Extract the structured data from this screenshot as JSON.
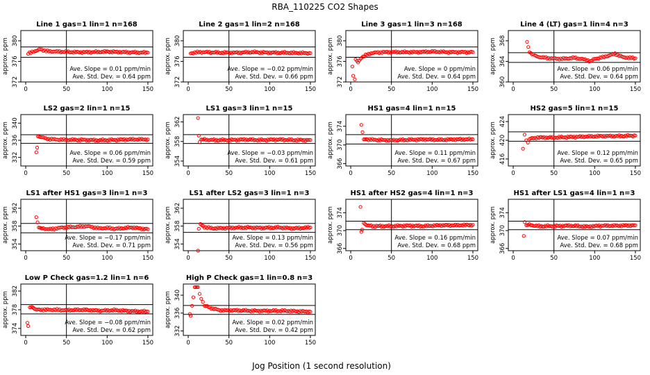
{
  "figure": {
    "title": "RBA_110225  CO2 Shapes",
    "xlabel": "Jog Position (1 second resolution)",
    "ylabel": "approx. ppm"
  },
  "chart_data": [
    {
      "type": "scatter",
      "title": "Line 1 gas=1 lin=1 n=168",
      "xlim": [
        0,
        150
      ],
      "xticks": [
        0,
        50,
        100,
        150
      ],
      "ylim": [
        372,
        382
      ],
      "yticks": [
        372,
        376,
        380
      ],
      "hlines": [
        376.8,
        378.8
      ],
      "vline": 50,
      "slope": "0.01",
      "sd": "0.64",
      "color": "#ff0000",
      "series": [
        {
          "name": "",
          "x": [
            3,
            8,
            13,
            18,
            25,
            40,
            60,
            80,
            100,
            120,
            150
          ],
          "y": [
            377.5,
            377.9,
            378.0,
            378.4,
            378.0,
            377.9,
            377.8,
            377.8,
            377.9,
            377.8,
            377.7
          ]
        }
      ]
    },
    {
      "type": "scatter",
      "title": "Line 2 gas=1 lin=2 n=168",
      "xlim": [
        0,
        150
      ],
      "xticks": [
        0,
        50,
        100,
        150
      ],
      "ylim": [
        372,
        382
      ],
      "yticks": [
        372,
        376,
        380
      ],
      "hlines": [
        376.8,
        378.8
      ],
      "vline": 50,
      "slope": "−0.02",
      "sd": "0.66",
      "color": "#ff0000",
      "series": [
        {
          "name": "",
          "x": [
            3,
            8,
            13,
            20,
            40,
            60,
            80,
            100,
            120,
            150
          ],
          "y": [
            377.6,
            377.7,
            377.8,
            377.8,
            377.7,
            377.7,
            377.8,
            377.7,
            377.7,
            377.6
          ]
        }
      ]
    },
    {
      "type": "scatter",
      "title": "Line 3 gas=1 lin=3 n=168",
      "xlim": [
        0,
        150
      ],
      "xticks": [
        0,
        50,
        100,
        150
      ],
      "ylim": [
        372,
        382
      ],
      "yticks": [
        372,
        376,
        380
      ],
      "hlines": [
        376.8,
        378.8
      ],
      "vline": 50,
      "slope": "0",
      "sd": "0.64",
      "color": "#ff0000",
      "series": [
        {
          "name": "",
          "x": [
            2,
            3,
            5,
            6,
            9,
            12,
            15,
            20,
            25,
            30,
            40,
            60,
            80,
            100,
            120,
            150
          ],
          "y": [
            375.0,
            373.2,
            372.5,
            376.4,
            375.8,
            376.5,
            376.9,
            377.3,
            377.6,
            377.7,
            377.8,
            377.8,
            377.8,
            377.9,
            377.8,
            377.8
          ]
        }
      ]
    },
    {
      "type": "scatter",
      "title": "Line 4 (LT) gas=1 lin=4 n=3",
      "xlim": [
        0,
        150
      ],
      "xticks": [
        0,
        50,
        100,
        150
      ],
      "ylim": [
        360,
        370
      ],
      "yticks": [
        360,
        364,
        368
      ],
      "hlines": [
        363.8,
        365.7
      ],
      "vline": 50,
      "slope": "0.06",
      "sd": "0.64",
      "color": "#ff0000",
      "series": [
        {
          "name": "",
          "x": [
            17,
            20,
            23,
            28,
            35,
            45,
            60,
            75,
            90,
            95,
            100,
            110,
            125,
            135,
            150
          ],
          "y": [
            367.8,
            365.8,
            365.5,
            365.0,
            364.8,
            364.6,
            364.5,
            364.7,
            364.3,
            364.0,
            364.5,
            364.8,
            365.5,
            364.8,
            364.6
          ]
        }
      ]
    },
    {
      "type": "scatter",
      "title": "LS2 gas=2 lin=1 n=15",
      "xlim": [
        0,
        150
      ],
      "xticks": [
        0,
        50,
        100,
        150
      ],
      "ylim": [
        330,
        342
      ],
      "yticks": [
        332,
        336,
        340
      ],
      "hlines": [
        335.3,
        337.3
      ],
      "vline": 50,
      "slope": "0.06",
      "sd": "0.59",
      "color": "#ff0000",
      "series": [
        {
          "name": "",
          "x": [
            13,
            14,
            15,
            18,
            25,
            35,
            50,
            70,
            90,
            110,
            130,
            150
          ],
          "y": [
            333.2,
            334.3,
            336.9,
            336.8,
            336.4,
            336.2,
            336.1,
            336.1,
            336.0,
            336.1,
            336.2,
            336.2
          ]
        }
      ]
    },
    {
      "type": "scatter",
      "title": "LS1 gas=3 lin=1 n=15",
      "xlim": [
        0,
        150
      ],
      "xticks": [
        0,
        50,
        100,
        150
      ],
      "ylim": [
        353,
        363.5
      ],
      "yticks": [
        354,
        358,
        362
      ],
      "hlines": [
        357.6,
        359.4
      ],
      "vline": 50,
      "slope": "−0.03",
      "sd": "0.61",
      "color": "#ff0000",
      "series": [
        {
          "name": "",
          "x": [
            12,
            13,
            14,
            16,
            20,
            30,
            50,
            70,
            90,
            110,
            130,
            150
          ],
          "y": [
            362.8,
            359.2,
            357.9,
            358.4,
            358.4,
            358.3,
            358.3,
            358.4,
            358.3,
            358.4,
            358.3,
            358.3
          ]
        }
      ]
    },
    {
      "type": "scatter",
      "title": "HS1 gas=4 lin=1 n=15",
      "xlim": [
        0,
        150
      ],
      "xticks": [
        0,
        50,
        100,
        150
      ],
      "ylim": [
        365.5,
        376.5
      ],
      "yticks": [
        366,
        370,
        374
      ],
      "hlines": [
        370.2,
        372.2
      ],
      "vline": 50,
      "slope": "0.11",
      "sd": "0.67",
      "color": "#ff0000",
      "series": [
        {
          "name": "",
          "x": [
            13,
            16,
            20,
            30,
            50,
            70,
            90,
            110,
            130,
            150
          ],
          "y": [
            374.3,
            371.2,
            371.2,
            371.1,
            371.0,
            371.1,
            371.2,
            371.1,
            371.2,
            371.2
          ]
        }
      ]
    },
    {
      "type": "scatter",
      "title": "HS2 gas=5 lin=1 n=15",
      "xlim": [
        0,
        150
      ],
      "xticks": [
        0,
        50,
        100,
        150
      ],
      "ylim": [
        414.5,
        425.5
      ],
      "yticks": [
        416,
        420,
        424
      ],
      "hlines": [
        419.8,
        421.8
      ],
      "vline": 50,
      "slope": "0.12",
      "sd": "0.65",
      "color": "#ff0000",
      "series": [
        {
          "name": "",
          "x": [
            12,
            14,
            16,
            18,
            20,
            30,
            50,
            70,
            90,
            110,
            130,
            150
          ],
          "y": [
            418.2,
            421.2,
            420.0,
            419.5,
            420.3,
            420.6,
            420.6,
            420.7,
            420.8,
            420.9,
            420.9,
            421.0
          ]
        }
      ]
    },
    {
      "type": "scatter",
      "title": "LS1 after HS1 gas=3 lin=1 n=3",
      "xlim": [
        0,
        150
      ],
      "xticks": [
        0,
        50,
        100,
        150
      ],
      "ylim": [
        352.5,
        364
      ],
      "yticks": [
        354,
        358,
        362
      ],
      "hlines": [
        356.5,
        358.6
      ],
      "vline": 50,
      "slope": "−0.17",
      "sd": "0.71",
      "color": "#ff0000",
      "series": [
        {
          "name": "",
          "x": [
            13,
            16,
            20,
            30,
            45,
            60,
            75,
            90,
            100,
            110,
            130,
            150
          ],
          "y": [
            360.0,
            357.7,
            357.5,
            357.3,
            357.7,
            357.8,
            358.0,
            357.5,
            357.6,
            357.4,
            357.7,
            357.3
          ]
        }
      ]
    },
    {
      "type": "scatter",
      "title": "LS1 after LS2 gas=3 lin=1 n=3",
      "xlim": [
        0,
        150
      ],
      "xticks": [
        0,
        50,
        100,
        150
      ],
      "ylim": [
        352.5,
        364
      ],
      "yticks": [
        354,
        358,
        362
      ],
      "hlines": [
        356.6,
        358.6
      ],
      "vline": 50,
      "slope": "0.13",
      "sd": "0.56",
      "color": "#ff0000",
      "series": [
        {
          "name": "",
          "x": [
            12,
            13,
            15,
            20,
            30,
            50,
            70,
            90,
            110,
            130,
            150
          ],
          "y": [
            352.5,
            357.4,
            358.4,
            357.8,
            357.5,
            357.6,
            357.7,
            357.6,
            357.7,
            357.5,
            357.7
          ]
        }
      ]
    },
    {
      "type": "scatter",
      "title": "HS1 after HS2 gas=4 lin=1 n=3",
      "xlim": [
        0,
        150
      ],
      "xticks": [
        0,
        50,
        100,
        150
      ],
      "ylim": [
        365.5,
        377
      ],
      "yticks": [
        366,
        370,
        374
      ],
      "hlines": [
        370.2,
        372.1
      ],
      "vline": 50,
      "slope": "0.16",
      "sd": "0.68",
      "color": "#ff0000",
      "series": [
        {
          "name": "",
          "x": [
            12,
            13,
            14,
            16,
            20,
            30,
            50,
            70,
            90,
            110,
            130,
            150
          ],
          "y": [
            375.3,
            369.7,
            370.2,
            371.7,
            371.1,
            371.0,
            371.0,
            371.1,
            371.0,
            371.2,
            371.2,
            371.3
          ]
        }
      ]
    },
    {
      "type": "scatter",
      "title": "HS1 after LS1 gas=4 lin=1 n=3",
      "xlim": [
        0,
        150
      ],
      "xticks": [
        0,
        50,
        100,
        150
      ],
      "ylim": [
        365.5,
        377
      ],
      "yticks": [
        366,
        370,
        374
      ],
      "hlines": [
        370.2,
        372.1
      ],
      "vline": 50,
      "slope": "0.07",
      "sd": "0.68",
      "color": "#ff0000",
      "series": [
        {
          "name": "",
          "x": [
            13,
            14,
            16,
            20,
            30,
            50,
            70,
            90,
            110,
            130,
            150
          ],
          "y": [
            368.8,
            371.9,
            371.2,
            371.3,
            371.0,
            371.0,
            371.1,
            370.9,
            371.1,
            371.1,
            371.2
          ]
        }
      ]
    },
    {
      "type": "scatter",
      "title": "Low P Check gas=1.2 lin=1 n=6",
      "xlim": [
        0,
        150
      ],
      "xticks": [
        0,
        50,
        100,
        150
      ],
      "ylim": [
        372.5,
        383.5
      ],
      "yticks": [
        374,
        378,
        382
      ],
      "hlines": [
        377.1,
        379.1
      ],
      "vline": 50,
      "slope": "−0.08",
      "sd": "0.62",
      "color": "#ff0000",
      "series": [
        {
          "name": "",
          "x": [
            2,
            3,
            5,
            8,
            12,
            20,
            35,
            50,
            70,
            90,
            110,
            130,
            150
          ],
          "y": [
            375.2,
            374.5,
            378.5,
            378.6,
            378.0,
            378.0,
            378.0,
            377.9,
            378.0,
            377.8,
            377.9,
            377.7,
            377.6
          ]
        }
      ]
    },
    {
      "type": "scatter",
      "title": "High P Check gas=1 lin=0.8 n=3",
      "xlim": [
        0,
        150
      ],
      "xticks": [
        0,
        50,
        100,
        150
      ],
      "ylim": [
        331,
        342.5
      ],
      "yticks": [
        332,
        336,
        340
      ],
      "hlines": [
        335.7,
        337.7
      ],
      "vline": 50,
      "slope": "0.02",
      "sd": "0.42",
      "color": "#ff0000",
      "series": [
        {
          "name": "",
          "x": [
            2,
            3,
            8,
            12,
            14,
            16,
            18,
            20,
            25,
            30,
            40,
            60,
            80,
            100,
            120,
            150
          ],
          "y": [
            335.8,
            335.5,
            341.8,
            341.8,
            340.3,
            339.2,
            338.5,
            337.6,
            337.4,
            337.0,
            336.6,
            336.6,
            336.5,
            336.5,
            336.5,
            336.3
          ]
        }
      ]
    }
  ]
}
